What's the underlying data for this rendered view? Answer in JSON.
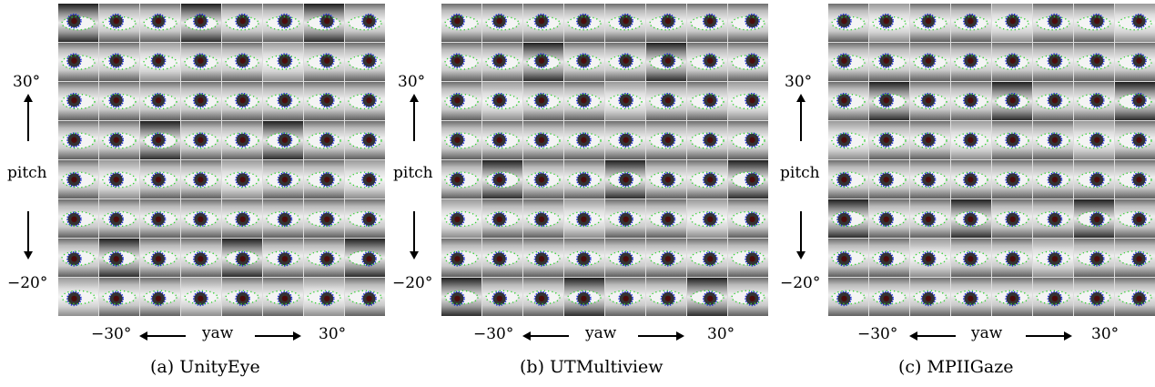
{
  "panels": [
    {
      "caption": "(a) UnityEye"
    },
    {
      "caption": "(b) UTMultiview"
    },
    {
      "caption": "(c) MPIIGaze"
    }
  ],
  "axes": {
    "pitch_top": "30°",
    "pitch_label": "pitch",
    "pitch_bottom": "−20°",
    "yaw_left": "−30°",
    "yaw_label": "yaw",
    "yaw_right": "30°"
  },
  "grid": {
    "rows": 8,
    "cols": 8
  },
  "colors": {
    "iris_outline": "#1a2fd6",
    "eyelid_landmarks": "#2fd12f",
    "pupil": "#4a0d0d"
  }
}
